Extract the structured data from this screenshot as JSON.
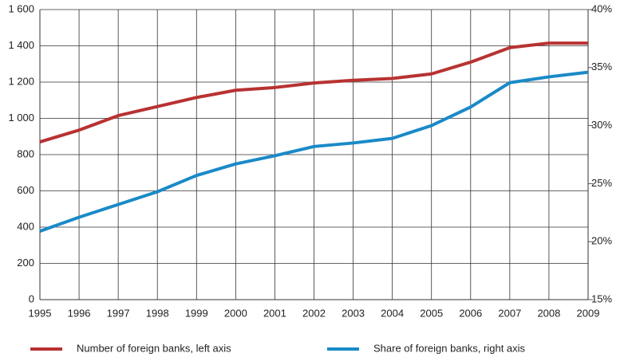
{
  "chart_data": {
    "type": "line",
    "categories": [
      "1995",
      "1996",
      "1997",
      "1998",
      "1999",
      "2000",
      "2001",
      "2002",
      "2003",
      "2004",
      "2005",
      "2006",
      "2007",
      "2008",
      "2009"
    ],
    "series": [
      {
        "name": "Number of foreign banks, left axis",
        "color": "#b83232",
        "values": [
          870,
          935,
          1015,
          1065,
          1115,
          1155,
          1170,
          1195,
          1210,
          1220,
          1245,
          1310,
          1390,
          1415,
          1415
        ]
      },
      {
        "name": "Share of foreign banks, right axis",
        "color": "#1a8ac8",
        "axis": "y2",
        "values": [
          20.9,
          22.1,
          23.2,
          24.3,
          25.7,
          26.7,
          27.4,
          28.2,
          28.5,
          28.9,
          30.0,
          31.6,
          33.7,
          34.2,
          34.6
        ]
      }
    ],
    "ylim": [
      0,
      1600
    ],
    "yticks": [
      0,
      200,
      400,
      600,
      800,
      {
        "value": 1000,
        "label": "1 000"
      },
      {
        "value": 1200,
        "label": "1 200"
      },
      {
        "value": 1400,
        "label": "1 400"
      },
      {
        "value": 1600,
        "label": "1 600"
      }
    ],
    "y2lim": [
      15,
      40
    ],
    "y2ticks": [
      {
        "value": 15,
        "label": "15%"
      },
      {
        "value": 20,
        "label": "20%"
      },
      {
        "value": 25,
        "label": "25%"
      },
      {
        "value": 30,
        "label": "30%"
      },
      {
        "value": 35,
        "label": "35%"
      },
      {
        "value": 40,
        "label": "40%"
      }
    ],
    "grid": true,
    "legend": "bottom"
  }
}
